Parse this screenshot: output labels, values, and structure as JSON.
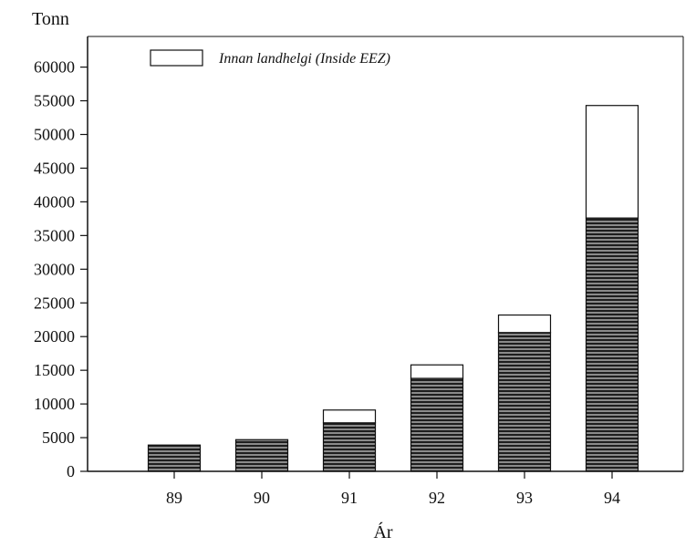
{
  "chart_data": {
    "type": "bar",
    "stacked": true,
    "title": "",
    "ylabel": "Tonn",
    "xlabel": "Ár",
    "ylim": [
      0,
      65000
    ],
    "yticks": [
      0,
      5000,
      10000,
      15000,
      20000,
      25000,
      30000,
      35000,
      40000,
      45000,
      50000,
      55000,
      60000
    ],
    "categories": [
      "89",
      "90",
      "91",
      "92",
      "93",
      "94"
    ],
    "series": [
      {
        "name": "",
        "pattern": "horizontal-hatch",
        "color": "#333333",
        "values": [
          3900,
          4700,
          7200,
          13800,
          20600,
          37600
        ]
      },
      {
        "name": "Innan landhelgi (Inside EEZ)",
        "pattern": "solid",
        "color": "#ffffff",
        "values": [
          0,
          0,
          1900,
          2000,
          2600,
          16700
        ]
      }
    ],
    "grid": false,
    "legend": "top-left"
  }
}
